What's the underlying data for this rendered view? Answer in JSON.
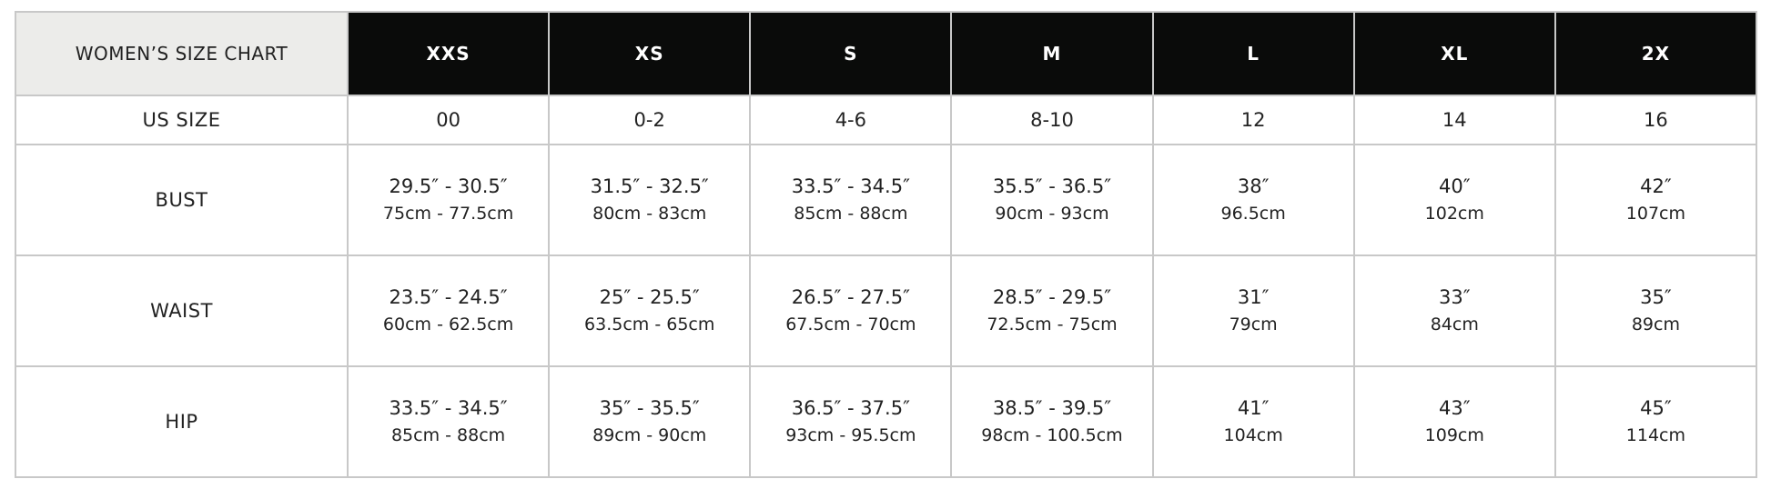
{
  "title": "WOMEN’S SIZE CHART",
  "sizes": [
    "XXS",
    "XS",
    "S",
    "M",
    "L",
    "XL",
    "2X"
  ],
  "header_bg": "#0a0b0a",
  "corner_bg": "#ececea",
  "rows": [
    {
      "label": "US SIZE",
      "cells": [
        {
          "in": "00"
        },
        {
          "in": "0-2"
        },
        {
          "in": "4-6"
        },
        {
          "in": "8-10"
        },
        {
          "in": "12"
        },
        {
          "in": "14"
        },
        {
          "in": "16"
        }
      ]
    },
    {
      "label": "BUST",
      "cells": [
        {
          "in": "29.5″ - 30.5″",
          "cm": "75cm - 77.5cm"
        },
        {
          "in": "31.5″ - 32.5″",
          "cm": "80cm - 83cm"
        },
        {
          "in": "33.5″ - 34.5″",
          "cm": "85cm - 88cm"
        },
        {
          "in": "35.5″ - 36.5″",
          "cm": "90cm - 93cm"
        },
        {
          "in": "38″",
          "cm": "96.5cm"
        },
        {
          "in": "40″",
          "cm": "102cm"
        },
        {
          "in": "42″",
          "cm": "107cm"
        }
      ]
    },
    {
      "label": "WAIST",
      "cells": [
        {
          "in": "23.5″ - 24.5″",
          "cm": "60cm - 62.5cm"
        },
        {
          "in": "25″ - 25.5″",
          "cm": "63.5cm - 65cm"
        },
        {
          "in": "26.5″ - 27.5″",
          "cm": "67.5cm - 70cm"
        },
        {
          "in": "28.5″ - 29.5″",
          "cm": "72.5cm - 75cm"
        },
        {
          "in": "31″",
          "cm": "79cm"
        },
        {
          "in": "33″",
          "cm": "84cm"
        },
        {
          "in": "35″",
          "cm": "89cm"
        }
      ]
    },
    {
      "label": "HIP",
      "cells": [
        {
          "in": "33.5″ - 34.5″",
          "cm": "85cm - 88cm"
        },
        {
          "in": "35″ - 35.5″",
          "cm": "89cm - 90cm"
        },
        {
          "in": "36.5″ - 37.5″",
          "cm": "93cm - 95.5cm"
        },
        {
          "in": "38.5″ - 39.5″",
          "cm": "98cm - 100.5cm"
        },
        {
          "in": "41″",
          "cm": "104cm"
        },
        {
          "in": "43″",
          "cm": "109cm"
        },
        {
          "in": "45″",
          "cm": "114cm"
        }
      ]
    }
  ]
}
